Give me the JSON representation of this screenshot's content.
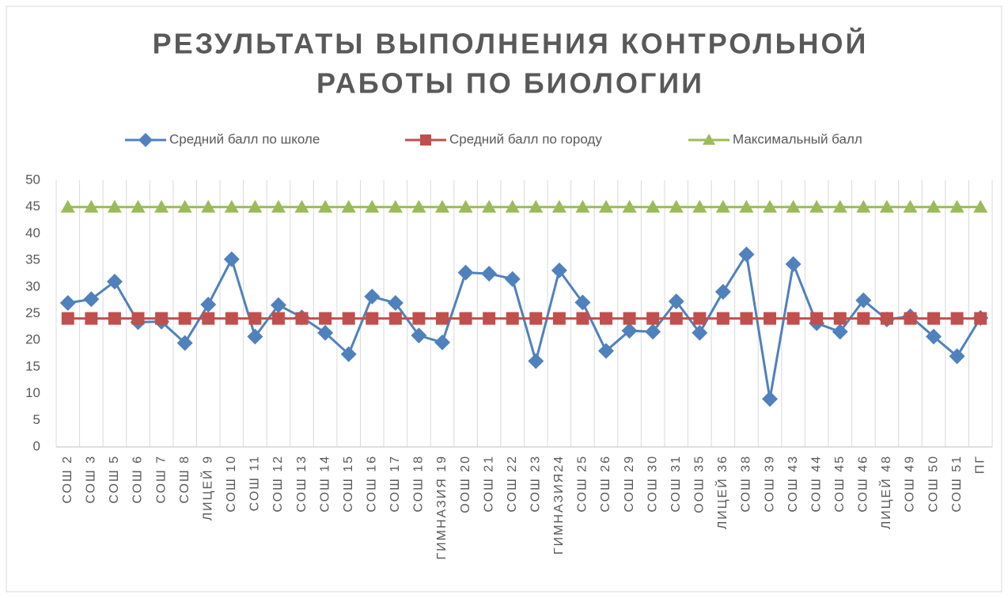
{
  "chart_data": {
    "type": "line",
    "title": [
      "РЕЗУЛЬТАТЫ ВЫПОЛНЕНИЯ КОНТРОЛЬНОЙ",
      "РАБОТЫ ПО БИОЛОГИИ"
    ],
    "categories": [
      "СОШ 2",
      "СОШ 3",
      "СОШ 5",
      "СОШ 6",
      "СОШ 7",
      "СОШ 8",
      "ЛИЦЕЙ 9",
      "СОШ 10",
      "СОШ 11",
      "СОШ 12",
      "СОШ 13",
      "СОШ 14",
      "СОШ 15",
      "СОШ 16",
      "СОШ 17",
      "СОШ 18",
      "ГИМНАЗИЯ 19",
      "ООШ 20",
      "СОШ 21",
      "СОШ 22",
      "СОШ 23",
      "ГИМНАЗИЯ24",
      "СОШ 25",
      "СОШ 26",
      "СОШ 29",
      "СОШ 30",
      "СОШ 31",
      "ООШ 35",
      "ЛИЦЕЙ 36",
      "СОШ 38",
      "СОШ 39",
      "СОШ 43",
      "СОШ 44",
      "СОШ 45",
      "СОШ 46",
      "ЛИЦЕЙ 48",
      "СОШ 49",
      "СОШ 50",
      "СОШ 51",
      "ПГ"
    ],
    "series": [
      {
        "name": "Средний балл по школе",
        "color": "#4f81bd",
        "marker": "diamond",
        "values": [
          27,
          27.7,
          31,
          23.4,
          23.5,
          19.5,
          26.7,
          35.2,
          20.7,
          26.6,
          24.3,
          21.4,
          17.4,
          28.2,
          27,
          20.9,
          19.6,
          32.7,
          32.5,
          31.5,
          16.1,
          33.1,
          27.1,
          18,
          21.8,
          21.6,
          27.3,
          21.4,
          29.1,
          36.1,
          9,
          34.3,
          23.2,
          21.6,
          27.5,
          23.9,
          24.5,
          20.7,
          17,
          24.2
        ]
      },
      {
        "name": "Средний балл по городу",
        "color": "#c0504d",
        "marker": "square",
        "values": [
          24.1,
          24.1,
          24.1,
          24.1,
          24.1,
          24.1,
          24.1,
          24.1,
          24.1,
          24.1,
          24.1,
          24.1,
          24.1,
          24.1,
          24.1,
          24.1,
          24.1,
          24.1,
          24.1,
          24.1,
          24.1,
          24.1,
          24.1,
          24.1,
          24.1,
          24.1,
          24.1,
          24.1,
          24.1,
          24.1,
          24.1,
          24.1,
          24.1,
          24.1,
          24.1,
          24.1,
          24.1,
          24.1,
          24.1,
          24.1
        ]
      },
      {
        "name": "Максимальный балл",
        "color": "#9bbb59",
        "marker": "triangle",
        "values": [
          45,
          45,
          45,
          45,
          45,
          45,
          45,
          45,
          45,
          45,
          45,
          45,
          45,
          45,
          45,
          45,
          45,
          45,
          45,
          45,
          45,
          45,
          45,
          45,
          45,
          45,
          45,
          45,
          45,
          45,
          45,
          45,
          45,
          45,
          45,
          45,
          45,
          45,
          45,
          45
        ]
      }
    ],
    "ylim": [
      0,
      50
    ],
    "yticks": [
      0,
      5,
      10,
      15,
      20,
      25,
      30,
      35,
      40,
      45,
      50
    ],
    "grid": "x",
    "legend": "top"
  }
}
